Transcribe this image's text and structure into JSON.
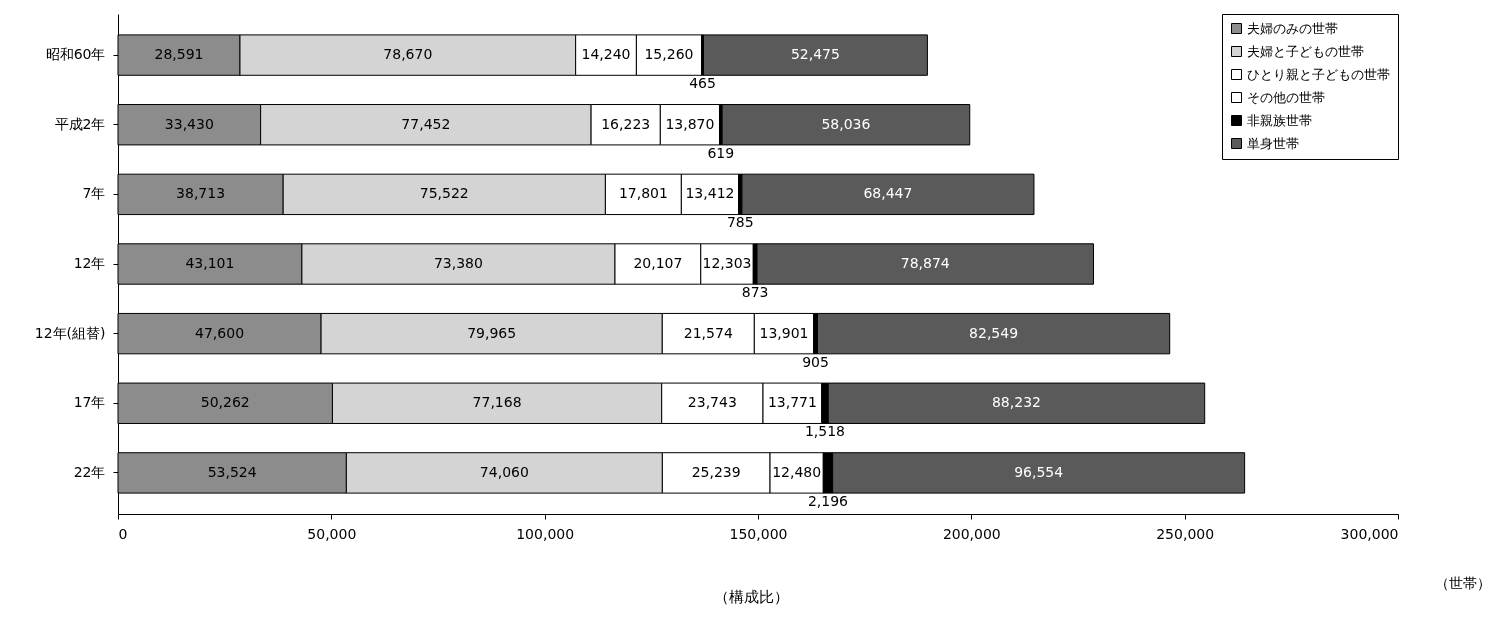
{
  "chart_data": {
    "type": "bar",
    "orientation": "horizontal",
    "stacked": true,
    "legend": "top right",
    "grid": false,
    "xlabel": "（世帯）",
    "annotations": [
      "（構成比）"
    ],
    "categories": [
      "昭和60年",
      "平成2年",
      "7年",
      "12年",
      "12年(組替)",
      "17年",
      "22年"
    ],
    "xlim": [
      0,
      300000
    ],
    "xticks": [
      0,
      {
        "value": 50000,
        "label": "50,000"
      },
      {
        "value": 100000,
        "label": "100,000"
      },
      {
        "value": 150000,
        "label": "150,000"
      },
      {
        "value": 200000,
        "label": "200,000"
      },
      {
        "value": 250000,
        "label": "250,000"
      },
      {
        "value": 300000,
        "label": "300,000"
      }
    ],
    "series": [
      {
        "name": "夫婦のみの世帯",
        "color": "#8c8c8c",
        "values": [
          28591,
          33430,
          38713,
          43101,
          47600,
          50262,
          53524
        ],
        "value_labels": [
          "28,591",
          "33,430",
          "38,713",
          "43,101",
          "47,600",
          "50,262",
          "53,524"
        ]
      },
      {
        "name": "夫婦と子どもの世帯",
        "color": "#d4d4d4",
        "values": [
          78670,
          77452,
          75522,
          73380,
          79965,
          77168,
          74060
        ],
        "value_labels": [
          "78,670",
          "77,452",
          "75,522",
          "73,380",
          "79,965",
          "77,168",
          "74,060"
        ]
      },
      {
        "name": "ひとり親と子どもの世帯",
        "color": "#ffffff",
        "values": [
          14240,
          16223,
          17801,
          20107,
          21574,
          23743,
          25239
        ],
        "value_labels": [
          "14,240",
          "16,223",
          "17,801",
          "20,107",
          "21,574",
          "23,743",
          "25,239"
        ]
      },
      {
        "name": "その他の世帯",
        "color": "#ffffff",
        "values": [
          15260,
          13870,
          13412,
          12303,
          13901,
          13771,
          12480
        ],
        "value_labels": [
          "15,260",
          "13,870",
          "13,412",
          "12,303",
          "13,901",
          "13,771",
          "12,480"
        ]
      },
      {
        "name": "非親族世帯",
        "color": "#000000",
        "values": [
          465,
          619,
          785,
          873,
          905,
          1518,
          2196
        ],
        "value_labels": [
          "465",
          "619",
          "785",
          "873",
          "905",
          "1,518",
          "2,196"
        ]
      },
      {
        "name": "単身世帯",
        "color": "#5a5a5a",
        "values": [
          52475,
          58036,
          68447,
          78874,
          82549,
          88232,
          96554
        ],
        "value_labels": [
          "52,475",
          "58,036",
          "68,447",
          "78,874",
          "82,549",
          "88,232",
          "96,554"
        ]
      }
    ]
  }
}
